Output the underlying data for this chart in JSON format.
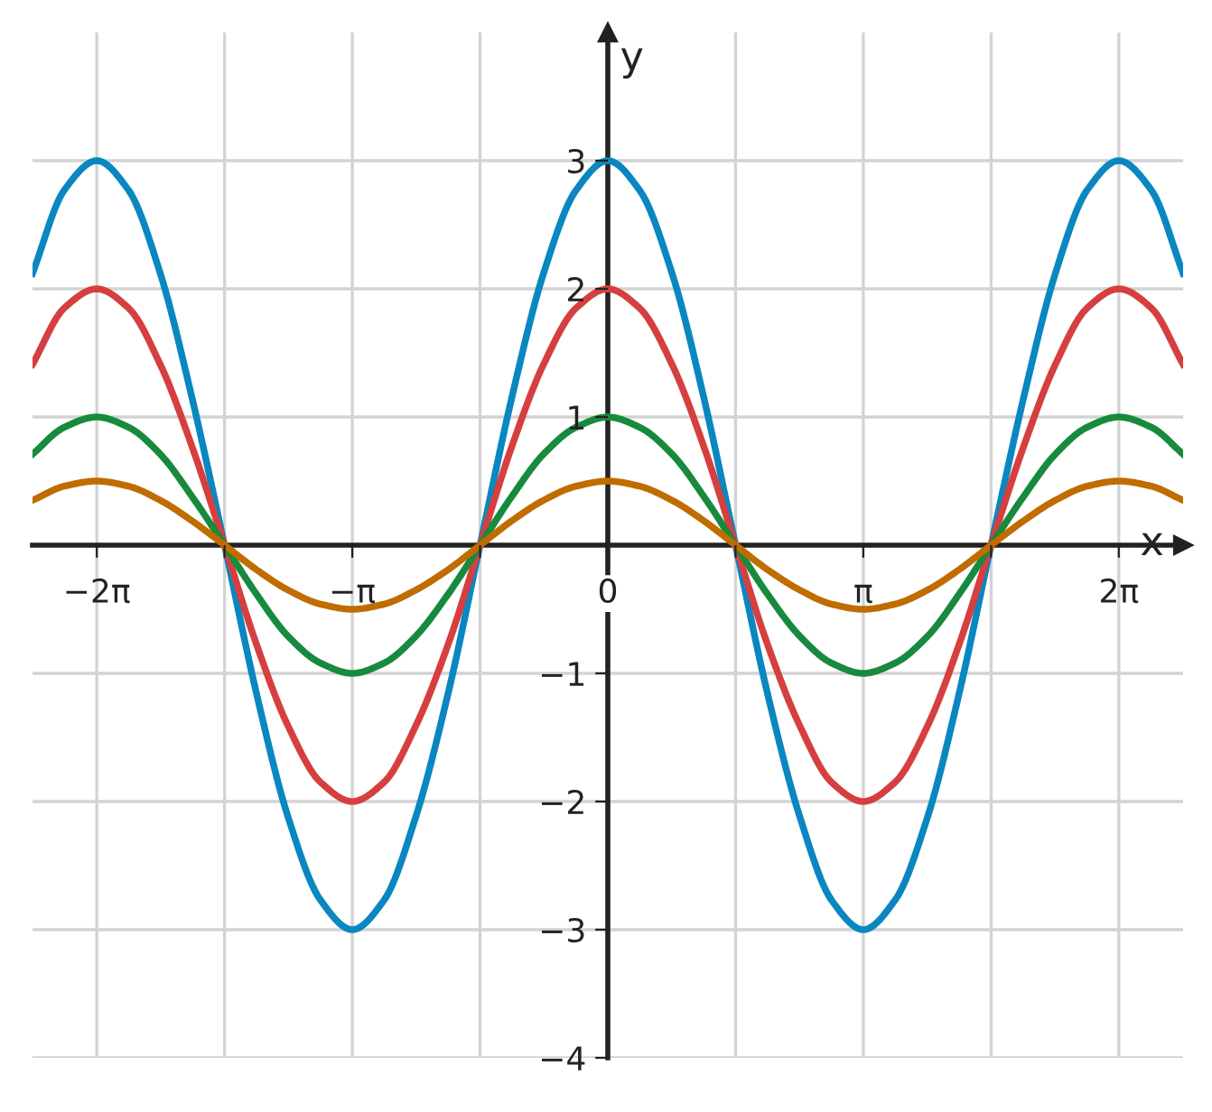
{
  "chart_data": {
    "type": "line",
    "xlabel": "x",
    "ylabel": "y",
    "x": [
      -7.07,
      -6.68,
      -6.28,
      -5.89,
      -5.5,
      -5.11,
      -4.71,
      -4.32,
      -3.93,
      -3.53,
      -3.14,
      -2.75,
      -2.36,
      -1.96,
      -1.57,
      -1.18,
      -0.79,
      -0.39,
      0,
      0.39,
      0.79,
      1.18,
      1.57,
      1.96,
      2.36,
      2.75,
      3.14,
      3.53,
      3.93,
      4.32,
      4.71,
      5.11,
      5.5,
      5.89,
      6.28,
      6.68,
      7.07
    ],
    "series": [
      {
        "color": "#0a87c0",
        "values": [
          2.12,
          2.77,
          3,
          2.77,
          2.12,
          1.15,
          0,
          -1.15,
          -2.12,
          -2.77,
          -3,
          -2.77,
          -2.12,
          -1.15,
          0,
          1.15,
          2.12,
          2.77,
          3,
          2.77,
          2.12,
          1.15,
          0,
          -1.15,
          -2.12,
          -2.77,
          -3,
          -2.77,
          -2.12,
          -1.15,
          0,
          1.15,
          2.12,
          2.77,
          3,
          2.77,
          2.12
        ]
      },
      {
        "color": "#d63f3f",
        "values": [
          1.41,
          1.85,
          2,
          1.85,
          1.41,
          0.77,
          0,
          -0.77,
          -1.41,
          -1.85,
          -2,
          -1.85,
          -1.41,
          -0.77,
          0,
          0.77,
          1.41,
          1.85,
          2,
          1.85,
          1.41,
          0.77,
          0,
          -0.77,
          -1.41,
          -1.85,
          -2,
          -1.85,
          -1.41,
          -0.77,
          0,
          0.77,
          1.41,
          1.85,
          2,
          1.85,
          1.41
        ]
      },
      {
        "color": "#178a3e",
        "values": [
          0.71,
          0.92,
          1,
          0.92,
          0.71,
          0.38,
          0,
          -0.38,
          -0.71,
          -0.92,
          -1,
          -0.92,
          -0.71,
          -0.38,
          0,
          0.38,
          0.71,
          0.92,
          1,
          0.92,
          0.71,
          0.38,
          0,
          -0.38,
          -0.71,
          -0.92,
          -1,
          -0.92,
          -0.71,
          -0.38,
          0,
          0.38,
          0.71,
          0.92,
          1,
          0.92,
          0.71
        ]
      },
      {
        "color": "#c06c00",
        "values": [
          0.35,
          0.46,
          0.5,
          0.46,
          0.35,
          0.19,
          0,
          -0.19,
          -0.35,
          -0.46,
          -0.5,
          -0.46,
          -0.35,
          -0.19,
          0,
          0.19,
          0.35,
          0.46,
          0.5,
          0.46,
          0.35,
          0.19,
          0,
          -0.19,
          -0.35,
          -0.46,
          -0.5,
          -0.46,
          -0.35,
          -0.19,
          0,
          0.19,
          0.35,
          0.46,
          0.5,
          0.46,
          0.35
        ]
      }
    ],
    "xlim": [
      -7.07,
      7.07
    ],
    "ylim": [
      -4,
      4
    ],
    "xticks": [
      {
        "value": -6.28,
        "label": "−2π"
      },
      {
        "value": -4.71,
        "label": null
      },
      {
        "value": -3.14,
        "label": "−π"
      },
      {
        "value": -1.57,
        "label": null
      },
      {
        "value": 0,
        "label": "0"
      },
      {
        "value": 1.57,
        "label": null
      },
      {
        "value": 3.14,
        "label": "π"
      },
      {
        "value": 4.71,
        "label": null
      },
      {
        "value": 6.28,
        "label": "2π"
      }
    ],
    "yticks": [
      {
        "value": -4,
        "label": "−4"
      },
      {
        "value": -3,
        "label": "−3"
      },
      {
        "value": -2,
        "label": "−2"
      },
      {
        "value": -1,
        "label": "−1"
      },
      1,
      2,
      3
    ],
    "grid": true,
    "legend": false,
    "marker": "none",
    "line_style": "solid"
  }
}
